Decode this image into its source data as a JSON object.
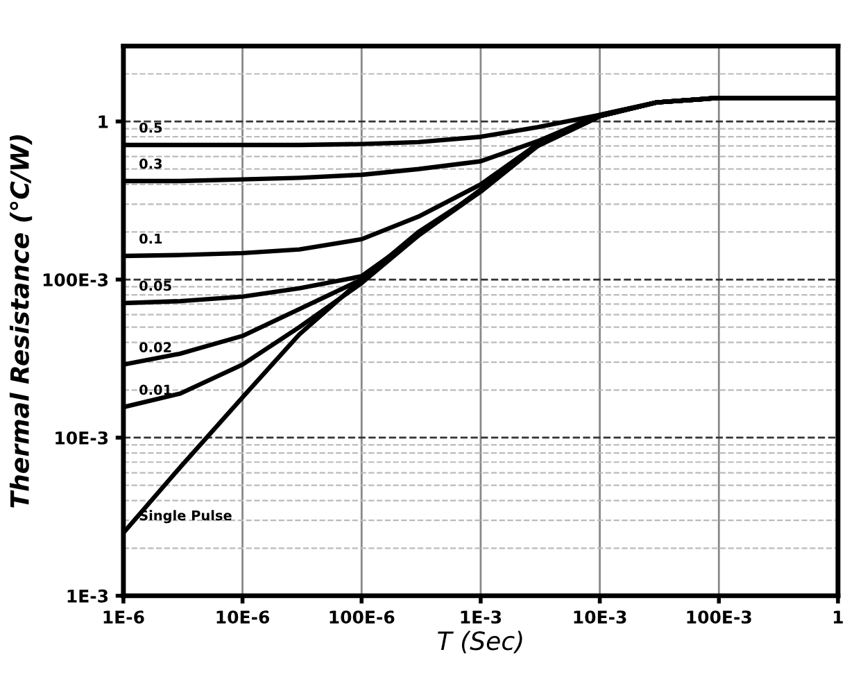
{
  "chart_data": {
    "type": "line",
    "xlabel": "T (Sec)",
    "ylabel": "Thermal Resistance (°C/W)",
    "log": "xy",
    "grid": true,
    "marker": "none",
    "line_style": "solid",
    "xlim": [
      1e-06,
      1
    ],
    "ylim": [
      0.001,
      3
    ],
    "xticks": [
      {
        "value": 1e-06,
        "label": "1E-6"
      },
      {
        "value": 1e-05,
        "label": "10E-6"
      },
      {
        "value": 0.0001,
        "label": "100E-6"
      },
      {
        "value": 0.001,
        "label": "1E-3"
      },
      {
        "value": 0.01,
        "label": "10E-3"
      },
      {
        "value": 0.1,
        "label": "100E-3"
      },
      1
    ],
    "yticks": [
      {
        "value": 0.001,
        "label": "1E-3"
      },
      {
        "value": 0.01,
        "label": "10E-3"
      },
      {
        "value": 0.1,
        "label": "100E-3"
      },
      1
    ],
    "x": [
      1e-06,
      3e-06,
      1e-05,
      3e-05,
      0.0001,
      0.0003,
      0.001,
      0.003,
      0.01,
      0.03,
      0.1,
      1
    ],
    "series": [
      {
        "name": "0.5",
        "color": "#000000",
        "values": [
          0.71,
          0.71,
          0.71,
          0.71,
          0.72,
          0.74,
          0.8,
          0.92,
          1.1,
          1.32,
          1.41,
          1.41
        ]
      },
      {
        "name": "0.3",
        "color": "#000000",
        "values": [
          0.42,
          0.42,
          0.43,
          0.44,
          0.46,
          0.5,
          0.56,
          0.75,
          1.1,
          1.32,
          1.41,
          1.41
        ]
      },
      {
        "name": "0.1",
        "color": "#000000",
        "values": [
          0.141,
          0.143,
          0.147,
          0.155,
          0.18,
          0.25,
          0.4,
          0.72,
          1.08,
          1.32,
          1.41,
          1.41
        ]
      },
      {
        "name": "0.05",
        "color": "#000000",
        "values": [
          0.071,
          0.073,
          0.078,
          0.088,
          0.105,
          0.19,
          0.37,
          0.7,
          1.08,
          1.32,
          1.41,
          1.41
        ]
      },
      {
        "name": "0.02",
        "color": "#000000",
        "values": [
          0.029,
          0.034,
          0.044,
          0.065,
          0.1,
          0.19,
          0.37,
          0.7,
          1.08,
          1.32,
          1.41,
          1.41
        ]
      },
      {
        "name": "0.01",
        "color": "#000000",
        "values": [
          0.0156,
          0.019,
          0.029,
          0.05,
          0.095,
          0.19,
          0.36,
          0.7,
          1.08,
          1.32,
          1.41,
          1.41
        ]
      },
      {
        "name": "Single Pulse",
        "color": "#000000",
        "values": [
          0.0025,
          0.0065,
          0.018,
          0.045,
          0.1,
          0.2,
          0.36,
          0.7,
          1.08,
          1.32,
          1.41,
          1.41
        ]
      }
    ]
  }
}
